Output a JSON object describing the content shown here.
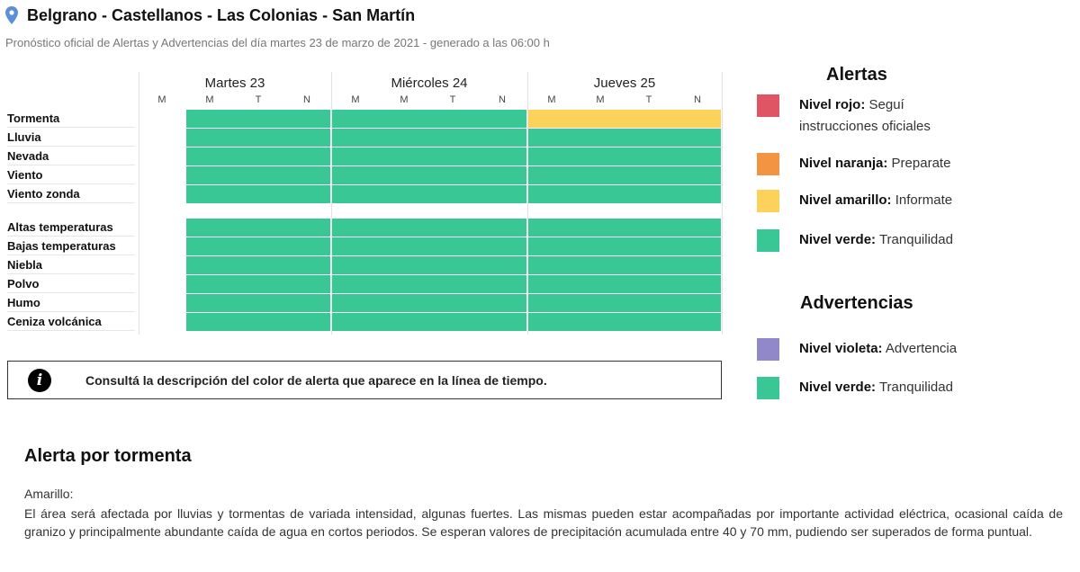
{
  "header": {
    "title": "Belgrano - Castellanos - Las Colonias - San Martín",
    "subtitle": "Pronóstico oficial de Alertas y Advertencias del día martes 23 de marzo de 2021 - generado a las 06:00 h"
  },
  "timeline": {
    "days": [
      {
        "name": "Martes 23",
        "periods": [
          "M",
          "M",
          "T",
          "N"
        ]
      },
      {
        "name": "Miércoles 24",
        "periods": [
          "M",
          "M",
          "T",
          "N"
        ]
      },
      {
        "name": "Jueves 25",
        "periods": [
          "M",
          "M",
          "T",
          "N"
        ]
      }
    ],
    "rows": [
      {
        "label": "Tormenta",
        "levels": [
          "none",
          "verde",
          "verde",
          "verde",
          "verde",
          "verde",
          "verde",
          "verde",
          "amarillo",
          "amarillo",
          "amarillo",
          "amarillo"
        ]
      },
      {
        "label": "Lluvia",
        "levels": [
          "none",
          "verde",
          "verde",
          "verde",
          "verde",
          "verde",
          "verde",
          "verde",
          "verde",
          "verde",
          "verde",
          "verde"
        ]
      },
      {
        "label": "Nevada",
        "levels": [
          "none",
          "verde",
          "verde",
          "verde",
          "verde",
          "verde",
          "verde",
          "verde",
          "verde",
          "verde",
          "verde",
          "verde"
        ]
      },
      {
        "label": "Viento",
        "levels": [
          "none",
          "verde",
          "verde",
          "verde",
          "verde",
          "verde",
          "verde",
          "verde",
          "verde",
          "verde",
          "verde",
          "verde"
        ]
      },
      {
        "label": "Viento zonda",
        "levels": [
          "none",
          "verde",
          "verde",
          "verde",
          "verde",
          "verde",
          "verde",
          "verde",
          "verde",
          "verde",
          "verde",
          "verde"
        ]
      },
      {
        "label": "Altas temperaturas",
        "levels": [
          "none",
          "verde",
          "verde",
          "verde",
          "verde",
          "verde",
          "verde",
          "verde",
          "verde",
          "verde",
          "verde",
          "verde"
        ]
      },
      {
        "label": "Bajas temperaturas",
        "levels": [
          "none",
          "verde",
          "verde",
          "verde",
          "verde",
          "verde",
          "verde",
          "verde",
          "verde",
          "verde",
          "verde",
          "verde"
        ]
      },
      {
        "label": "Niebla",
        "levels": [
          "none",
          "verde",
          "verde",
          "verde",
          "verde",
          "verde",
          "verde",
          "verde",
          "verde",
          "verde",
          "verde",
          "verde"
        ]
      },
      {
        "label": "Polvo",
        "levels": [
          "none",
          "verde",
          "verde",
          "verde",
          "verde",
          "verde",
          "verde",
          "verde",
          "verde",
          "verde",
          "verde",
          "verde"
        ]
      },
      {
        "label": "Humo",
        "levels": [
          "none",
          "verde",
          "verde",
          "verde",
          "verde",
          "verde",
          "verde",
          "verde",
          "verde",
          "verde",
          "verde",
          "verde"
        ]
      },
      {
        "label": "Ceniza volcánica",
        "levels": [
          "none",
          "verde",
          "verde",
          "verde",
          "verde",
          "verde",
          "verde",
          "verde",
          "verde",
          "verde",
          "verde",
          "verde"
        ]
      }
    ]
  },
  "colors": {
    "rojo": "#e05563",
    "naranja": "#f29441",
    "amarillo": "#fcd25a",
    "verde": "#3ac796",
    "violeta": "#9088c9",
    "pin": "#5b8fd6"
  },
  "info": {
    "icon": "info-icon",
    "text": "Consultá la descripción del color de alerta que aparece en la línea de tiempo."
  },
  "legend": {
    "alertas_title": "Alertas",
    "alertas": [
      {
        "level": "rojo",
        "bold": "Nivel rojo:",
        "text": " Seguí instrucciones oficiales"
      },
      {
        "level": "naranja",
        "bold": "Nivel naranja:",
        "text": " Preparate"
      },
      {
        "level": "amarillo",
        "bold": "Nivel amarillo:",
        "text": " Informate"
      },
      {
        "level": "verde",
        "bold": "Nivel verde:",
        "text": " Tranquilidad"
      }
    ],
    "advertencias_title": "Advertencias",
    "advertencias": [
      {
        "level": "violeta",
        "bold": "Nivel violeta:",
        "text": " Advertencia"
      },
      {
        "level": "verde",
        "bold": "Nivel verde:",
        "text": " Tranquilidad"
      }
    ]
  },
  "detail": {
    "title": "Alerta por tormenta",
    "level_label": "Amarillo:",
    "description": "El área será afectada por lluvias y tormentas de variada intensidad, algunas fuertes. Las mismas pueden estar acompañadas por importante actividad eléctrica, ocasional caída de granizo y principalmente abundante caída de agua en cortos periodos. Se esperan valores de precipitación acumulada entre 40 y 70 mm, pudiendo ser superados de forma puntual."
  }
}
